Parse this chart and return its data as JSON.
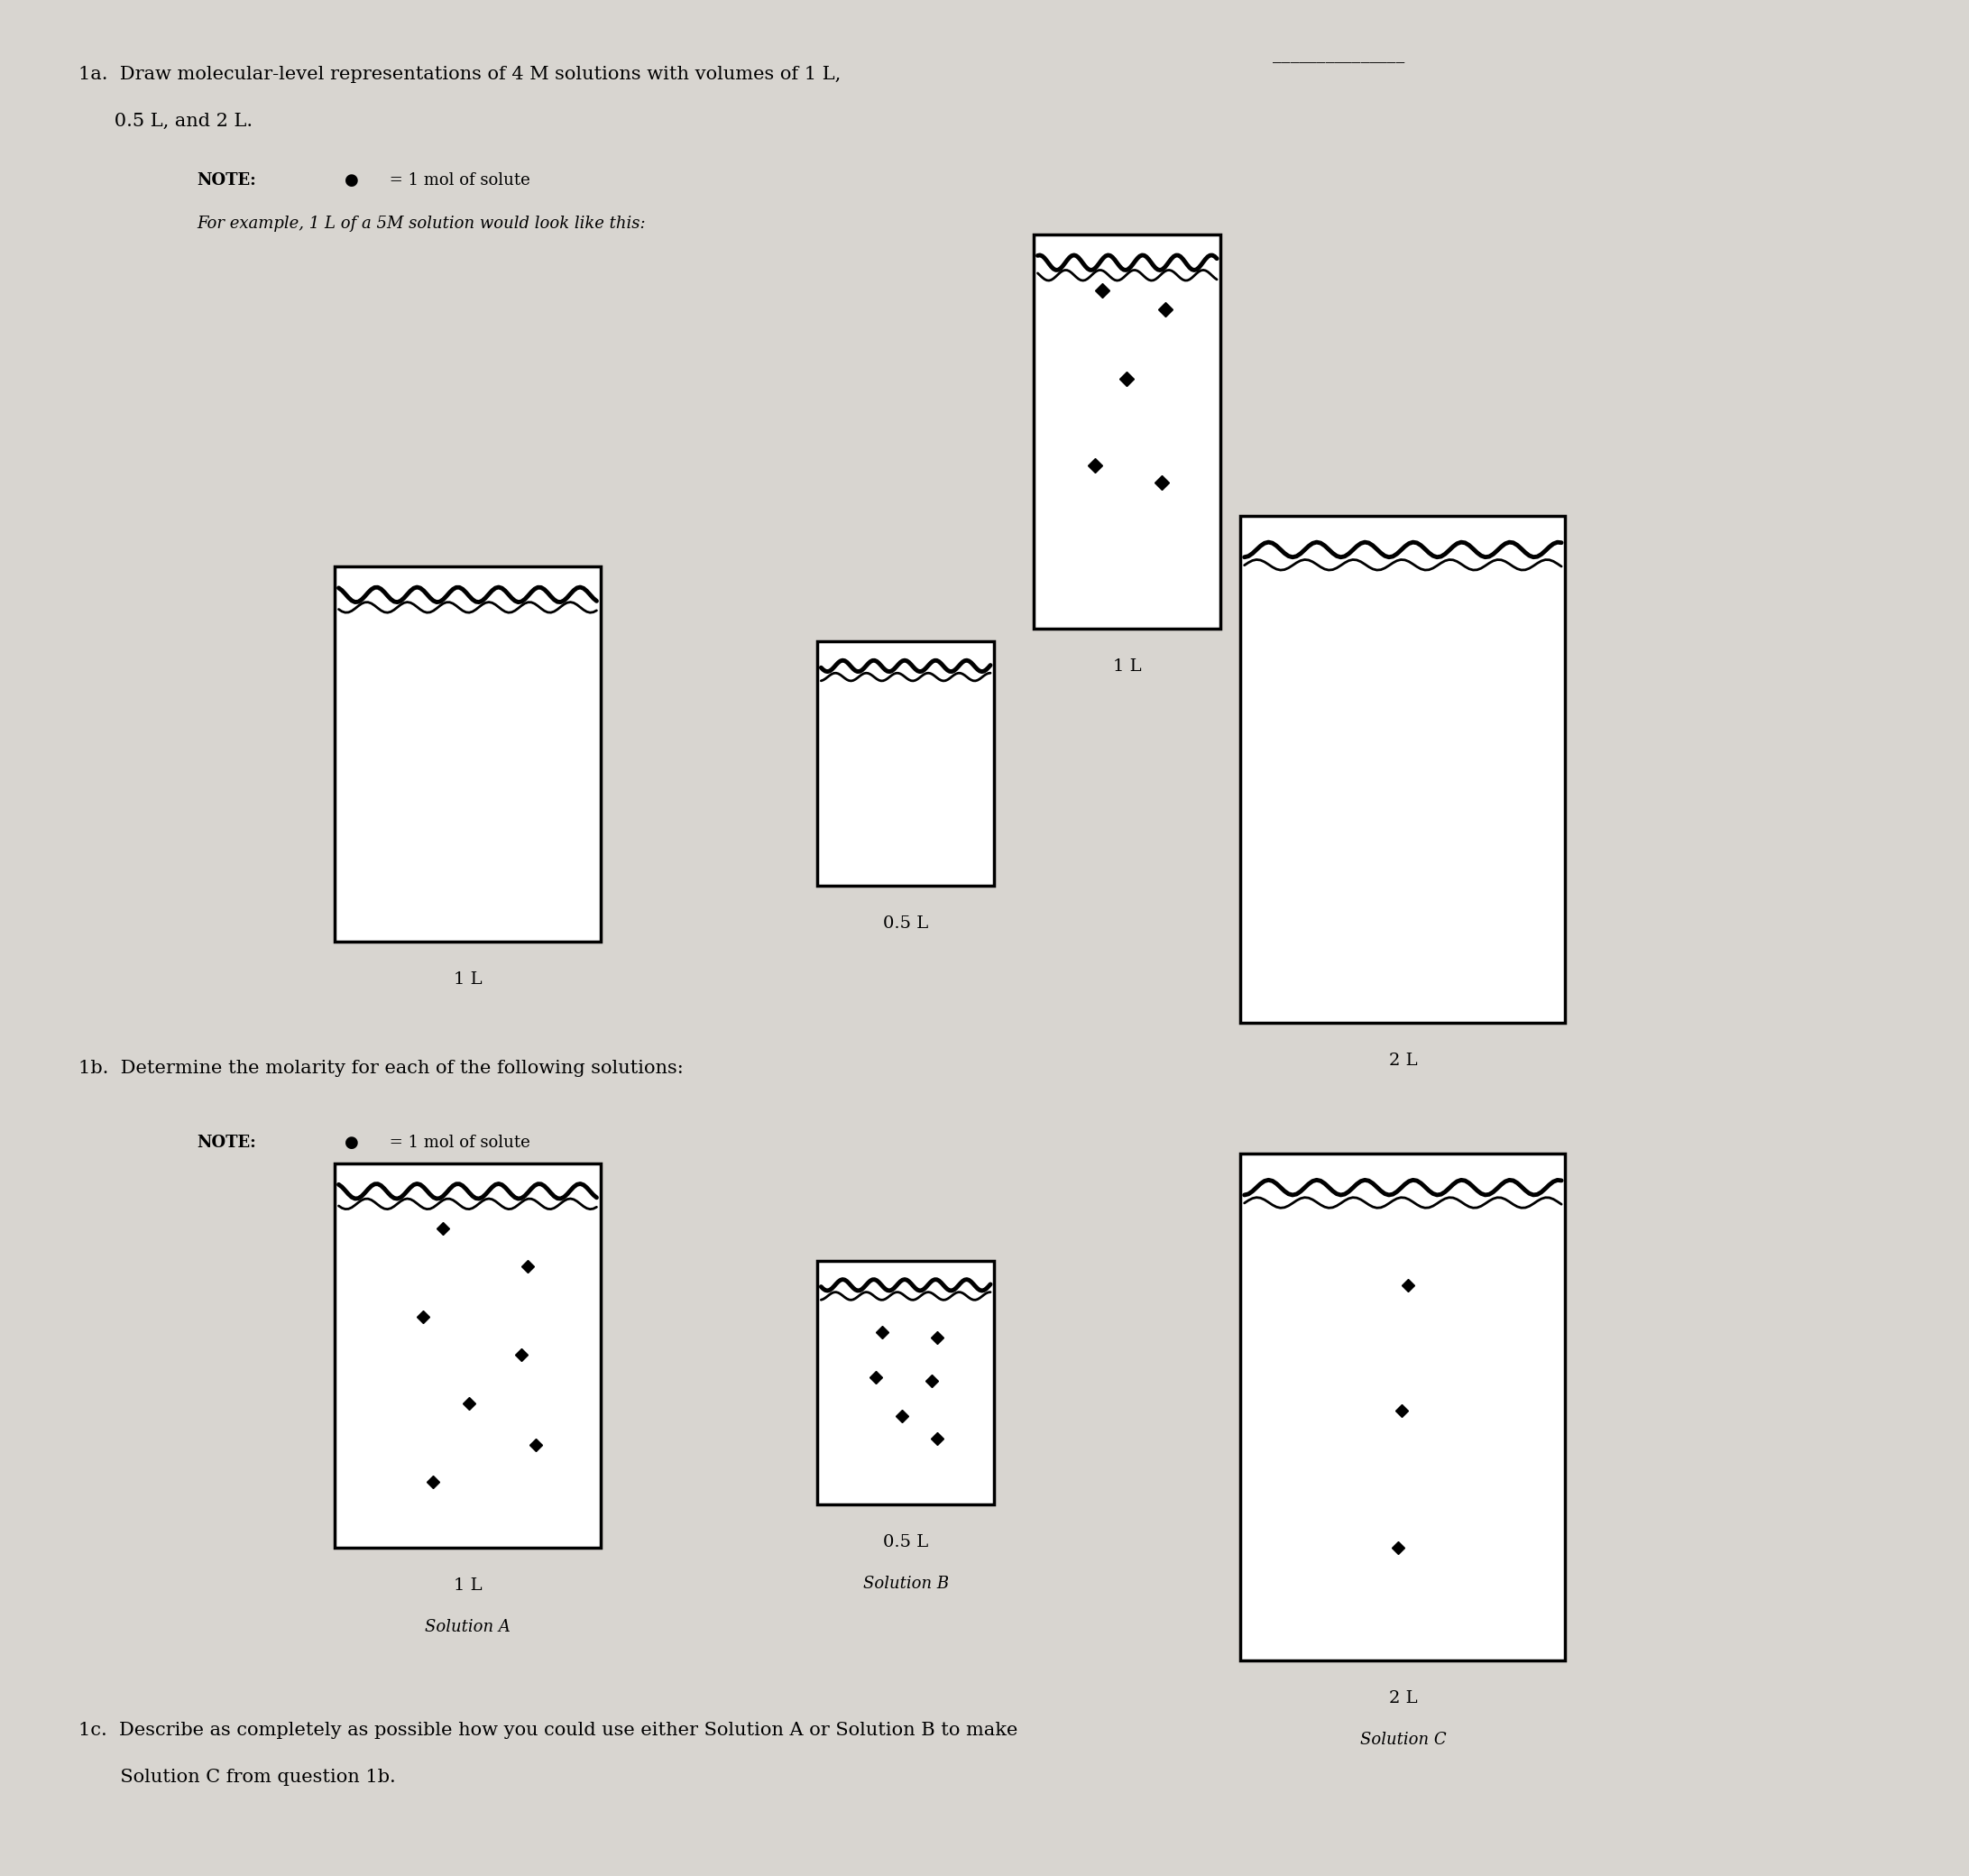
{
  "bg_color": "#d8d5d0",
  "fig_width": 21.83,
  "fig_height": 20.8,
  "section_1a_text1": "1a.  Draw molecular-level representations of 4 M solutions with volumes of 1 L,",
  "section_1a_text2": "      0.5 L, and 2 L.",
  "note_1a_bullet": "●",
  "note_1a_text": " = 1 mol of solute",
  "note_1a_example": "For example, 1 L of a 5M solution would look like this:",
  "section_1b_text": "1b.  Determine the molarity for each of the following solutions:",
  "note_1b_bullet": "●",
  "note_1b_text": " = 1 mol of solute",
  "section_1c_text1": "1c.  Describe as completely as possible how you could use either Solution A or Solution B to make",
  "section_1c_text2": "       Solution C from question 1b."
}
